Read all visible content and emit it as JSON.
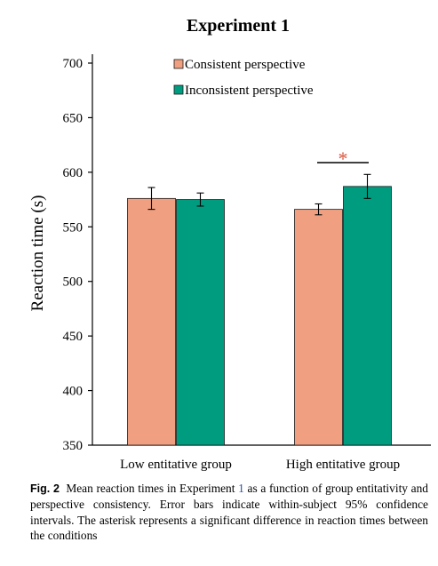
{
  "chart_data": {
    "type": "bar",
    "title": "Experiment 1",
    "ylabel": "Reaction time (s)",
    "xlabel": "",
    "ylim": [
      350,
      700
    ],
    "yticks": [
      350,
      400,
      450,
      500,
      550,
      600,
      650,
      700
    ],
    "categories": [
      "Low entitative group",
      "High entitative group"
    ],
    "series": [
      {
        "name": "Consistent perspective",
        "color": "#f0a080",
        "values": [
          576,
          566
        ],
        "errors": [
          10,
          5
        ]
      },
      {
        "name": "Inconsistent perspective",
        "color": "#009c80",
        "values": [
          575,
          587
        ],
        "errors": [
          6,
          11
        ]
      }
    ],
    "legend": "top-right",
    "grid": false,
    "annotation": {
      "text": "*",
      "color": "#d9553c",
      "category_index": 1
    }
  },
  "caption": {
    "label": "Fig. 2",
    "text_before_ref": "Mean reaction times in Experiment",
    "ref": "1",
    "text_after_ref": "as a function of group entitativity and perspective consistency. Error bars indicate within-subject 95% confidence intervals. The asterisk represents a significant difference in reaction times between the conditions"
  }
}
